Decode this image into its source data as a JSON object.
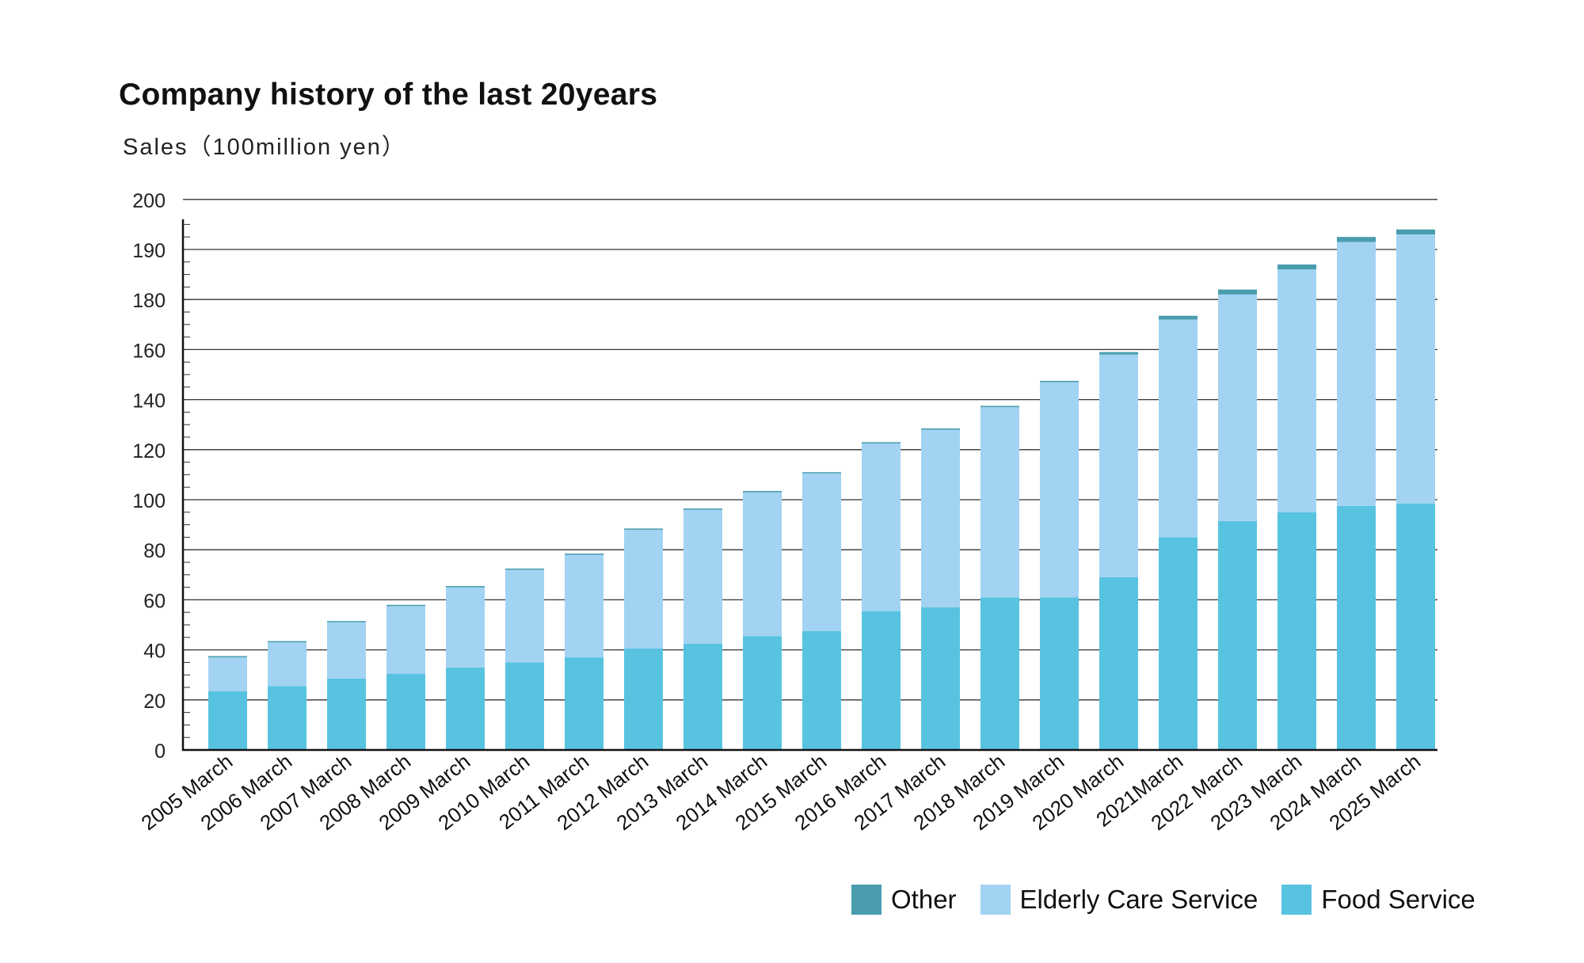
{
  "chart_data": {
    "type": "bar",
    "stacked": true,
    "title": "Company history of the last 20years",
    "ylabel": "Sales（100million yen）",
    "xlabel": "",
    "ylim": [
      0,
      200
    ],
    "yticks": [
      "0",
      "20",
      "40",
      "60",
      "80",
      "100",
      "120",
      "140",
      "160",
      "180",
      "190",
      "200"
    ],
    "grid": true,
    "legend_position": "bottom-right",
    "categories": [
      "2005 March",
      "2006 March",
      "2007 March",
      "2008 March",
      "2009 March",
      "2010 March",
      "2011 March",
      "2012 March",
      "2013 March",
      "2014 March",
      "2015 March",
      "2016 March",
      "2017 March",
      "2018 March",
      "2019 March",
      "2020 March",
      "2021March",
      "2022 March",
      "2023 March",
      "2024 March",
      "2025 March"
    ],
    "series": [
      {
        "name": "Food Service",
        "color": "#57C3E0",
        "values": [
          23.5,
          25.5,
          28.5,
          30.5,
          33,
          35,
          37,
          40.5,
          42.5,
          45.5,
          47.5,
          55.5,
          57,
          61,
          61,
          69,
          85,
          91.5,
          95,
          97.5,
          98.5
        ]
      },
      {
        "name": "Elderly Care Service",
        "color": "#A2D3F2",
        "values": [
          13.5,
          17.5,
          22.5,
          27,
          32,
          37,
          41,
          47.5,
          53.5,
          57.5,
          63,
          67,
          71,
          76,
          86,
          89,
          87,
          89.5,
          91,
          94,
          94.5
        ]
      },
      {
        "name": "Other",
        "color": "#4A9DAE",
        "values": [
          0.5,
          0.5,
          0.5,
          0.5,
          0.5,
          0.5,
          0.5,
          0.5,
          0.5,
          0.5,
          0.5,
          0.5,
          0.5,
          0.5,
          0.5,
          1,
          1.5,
          1,
          1,
          1,
          1
        ]
      }
    ]
  },
  "legend": {
    "items": [
      {
        "label": "Other",
        "color": "#4A9DAE"
      },
      {
        "label": "Elderly Care Service",
        "color": "#A2D3F2"
      },
      {
        "label": "Food Service",
        "color": "#57C3E0"
      }
    ]
  }
}
